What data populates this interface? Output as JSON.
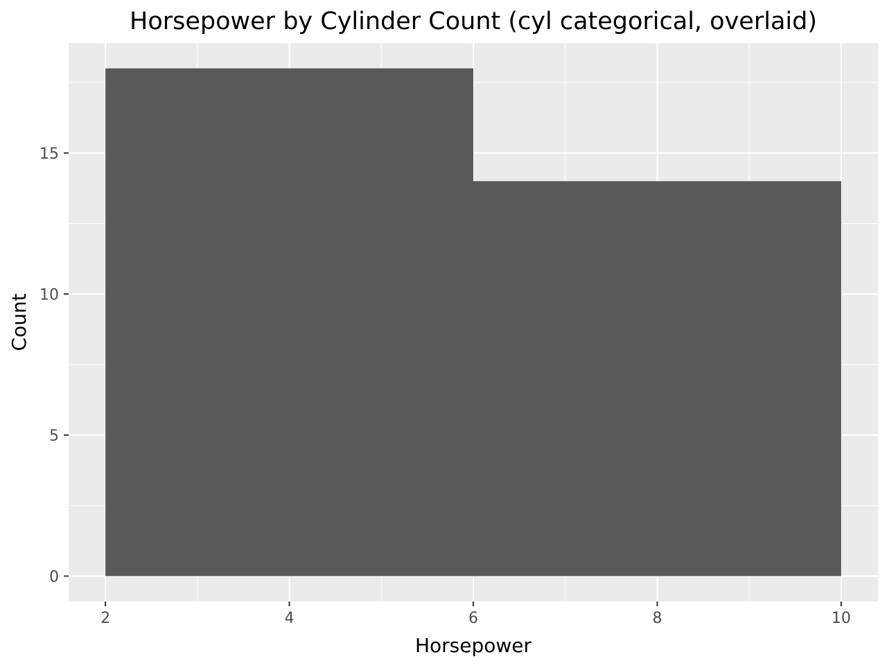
{
  "chart_data": {
    "type": "bar",
    "title": "Horsepower by Cylinder Count (cyl categorical, overlaid)",
    "xlabel": "Horsepower",
    "ylabel": "Count",
    "bins": [
      {
        "x_start": 2,
        "x_end": 6,
        "count": 18
      },
      {
        "x_start": 6,
        "x_end": 10,
        "count": 14
      }
    ],
    "xlim": [
      1.6,
      10.4
    ],
    "ylim": [
      -0.9,
      18.9
    ],
    "x_ticks": [
      2,
      4,
      6,
      8,
      10
    ],
    "x_tick_labels": [
      "2",
      "4",
      "6",
      "8",
      "10"
    ],
    "y_ticks": [
      0,
      5,
      10,
      15
    ],
    "y_tick_labels": [
      "0",
      "5",
      "10",
      "15"
    ],
    "grid": true,
    "colors": {
      "panel_background": "#ebebeb",
      "grid_major": "#ffffff",
      "bar_fill": "#595959",
      "tick_color": "#333333"
    }
  }
}
